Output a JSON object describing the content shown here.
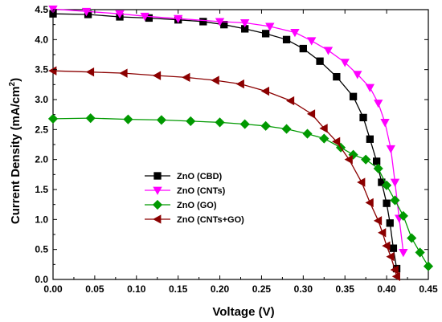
{
  "chart_data": {
    "type": "line",
    "xlabel": "Voltage (V)",
    "ylabel": "Current Density (mA/cm",
    "ylabel_sup": "2",
    "ylabel_close": ")",
    "xlim": [
      0.0,
      0.45
    ],
    "ylim": [
      0.0,
      4.5
    ],
    "xticks": [
      0.0,
      0.05,
      0.1,
      0.15,
      0.2,
      0.25,
      0.3,
      0.35,
      0.4,
      0.45
    ],
    "xtick_labels": [
      "0.00",
      "0.05",
      "0.10",
      "0.15",
      "0.20",
      "0.25",
      "0.30",
      "0.35",
      "0.40",
      "0.45"
    ],
    "yticks": [
      0.0,
      0.5,
      1.0,
      1.5,
      2.0,
      2.5,
      3.0,
      3.5,
      4.0,
      4.5
    ],
    "ytick_labels": [
      "0.0",
      "0.5",
      "1.0",
      "1.5",
      "2.0",
      "2.5",
      "3.0",
      "3.5",
      "4.0",
      "4.5"
    ],
    "grid": false,
    "legend_position": "center-left",
    "series": [
      {
        "name": "ZnO (CBD)",
        "color": "#000000",
        "marker": "square",
        "x": [
          0.0,
          0.042,
          0.08,
          0.115,
          0.15,
          0.18,
          0.205,
          0.23,
          0.255,
          0.28,
          0.3,
          0.32,
          0.34,
          0.36,
          0.372,
          0.38,
          0.388,
          0.394,
          0.4,
          0.404,
          0.408,
          0.412
        ],
        "y": [
          4.43,
          4.42,
          4.38,
          4.36,
          4.33,
          4.3,
          4.25,
          4.18,
          4.1,
          4.0,
          3.85,
          3.64,
          3.38,
          3.05,
          2.7,
          2.34,
          1.97,
          1.62,
          1.27,
          0.94,
          0.52,
          0.18
        ]
      },
      {
        "name": "ZnO (CNTs)",
        "color": "#ff00ff",
        "marker": "triangle-down",
        "x": [
          0.0,
          0.04,
          0.08,
          0.11,
          0.15,
          0.2,
          0.23,
          0.26,
          0.29,
          0.31,
          0.33,
          0.35,
          0.365,
          0.38,
          0.39,
          0.398,
          0.405,
          0.41,
          0.415,
          0.42
        ],
        "y": [
          4.51,
          4.47,
          4.43,
          4.39,
          4.35,
          4.3,
          4.28,
          4.22,
          4.12,
          3.98,
          3.82,
          3.62,
          3.42,
          3.2,
          2.94,
          2.62,
          2.18,
          1.62,
          1.02,
          0.45
        ]
      },
      {
        "name": "ZnO (GO)",
        "color": "#009900",
        "marker": "diamond",
        "x": [
          0.0,
          0.045,
          0.09,
          0.13,
          0.165,
          0.2,
          0.23,
          0.255,
          0.28,
          0.305,
          0.325,
          0.345,
          0.36,
          0.375,
          0.39,
          0.4,
          0.41,
          0.42,
          0.43,
          0.44,
          0.45
        ],
        "y": [
          2.68,
          2.69,
          2.67,
          2.66,
          2.64,
          2.62,
          2.59,
          2.56,
          2.51,
          2.43,
          2.35,
          2.2,
          2.08,
          2.0,
          1.85,
          1.57,
          1.32,
          1.06,
          0.69,
          0.45,
          0.22
        ]
      },
      {
        "name": "ZnO (CNTs+GO)",
        "color": "#8b0000",
        "marker": "triangle-left",
        "x": [
          0.0,
          0.045,
          0.085,
          0.125,
          0.16,
          0.195,
          0.225,
          0.255,
          0.285,
          0.31,
          0.325,
          0.34,
          0.355,
          0.37,
          0.38,
          0.39,
          0.395,
          0.4,
          0.405,
          0.41,
          0.412
        ],
        "y": [
          3.48,
          3.46,
          3.44,
          3.4,
          3.37,
          3.32,
          3.26,
          3.14,
          2.98,
          2.76,
          2.52,
          2.3,
          2.0,
          1.62,
          1.28,
          0.98,
          0.78,
          0.56,
          0.38,
          0.16,
          0.05
        ]
      }
    ]
  }
}
